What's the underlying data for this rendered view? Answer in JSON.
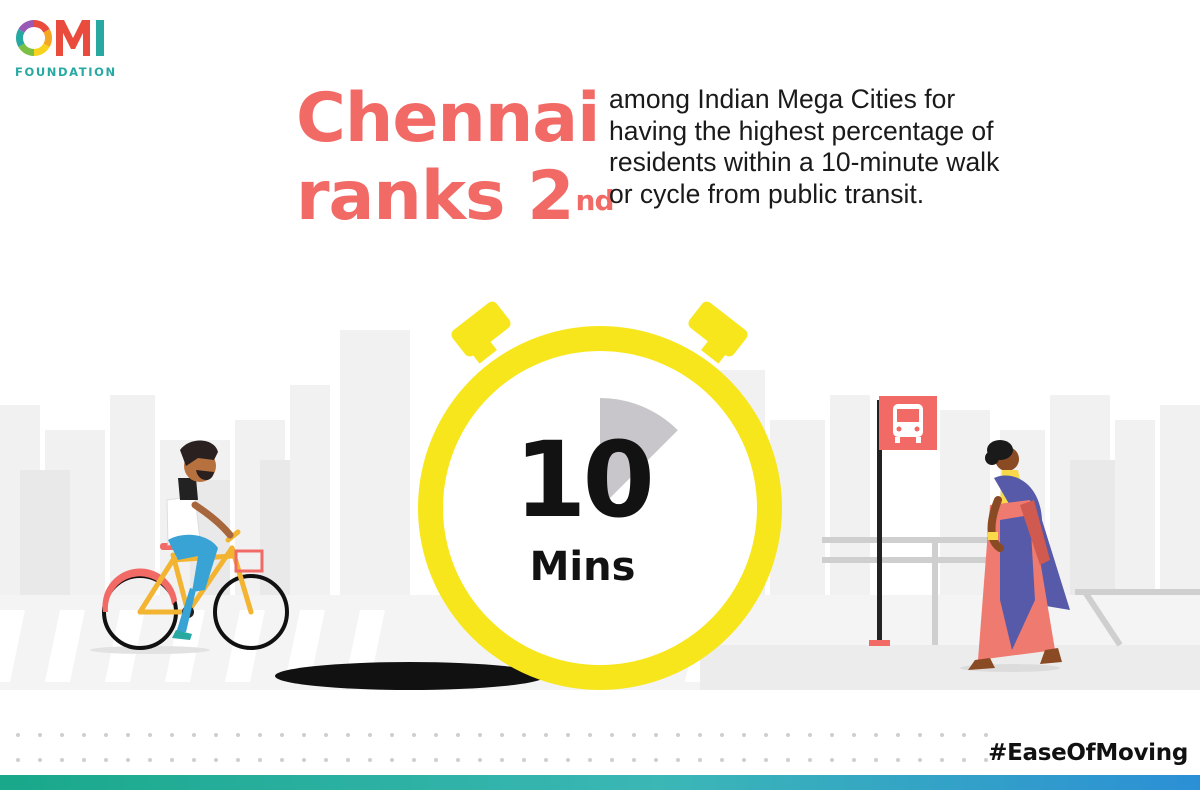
{
  "brand": {
    "logo_text": "OMI",
    "logo_subtitle": "FOUNDATION"
  },
  "headline": {
    "line1": "Chennai",
    "line2": "ranks 2",
    "ordinal_suffix": "nd",
    "color": "#f26a66"
  },
  "description": {
    "lines": [
      "among Indian Mega Cities for",
      "having the highest percentage of",
      "residents within a 10-minute walk",
      "or cycle from public transit."
    ]
  },
  "timer": {
    "number": "10",
    "unit": "Mins",
    "ring_color": "#f7e61c",
    "elapsed_fraction": 0.125
  },
  "icons": {
    "bus_stop": "bus-icon",
    "cyclist": "cyclist-figure",
    "pedestrian": "woman-walking-figure"
  },
  "footer": {
    "hashtag": "#EaseOfMoving"
  },
  "colors": {
    "accent": "#f26a66",
    "timer_yellow": "#f7e61c",
    "teal": "#27a9a2"
  }
}
